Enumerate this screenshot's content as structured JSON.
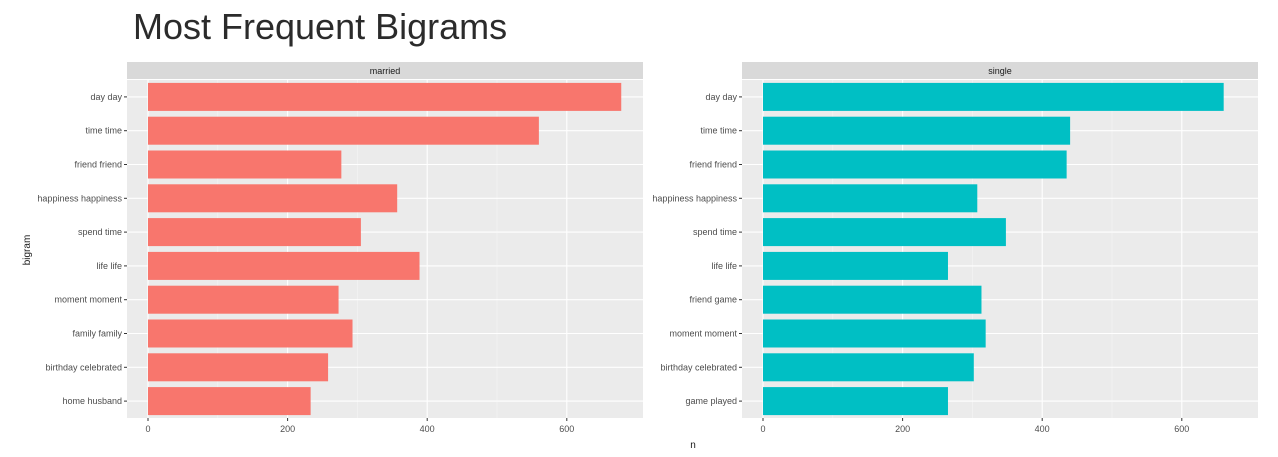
{
  "chart_data": {
    "type": "bar",
    "orientation": "horizontal",
    "title": "Most Frequent Bigrams",
    "xlabel": "n",
    "ylabel": "bigram",
    "xlim": [
      0,
      680
    ],
    "x_ticks": [
      0,
      200,
      400,
      600
    ],
    "grid": true,
    "facets": [
      {
        "name": "married",
        "color": "#F8766D",
        "categories": [
          "day day",
          "time time",
          "friend friend",
          "happiness happiness",
          "spend time",
          "life life",
          "moment moment",
          "family family",
          "birthday celebrated",
          "home husband"
        ],
        "values": [
          678,
          560,
          277,
          357,
          305,
          389,
          273,
          293,
          258,
          233
        ]
      },
      {
        "name": "single",
        "color": "#00BFC4",
        "categories": [
          "day day",
          "time time",
          "friend friend",
          "happiness happiness",
          "spend time",
          "life life",
          "friend game",
          "moment moment",
          "birthday celebrated",
          "game played"
        ],
        "values": [
          660,
          440,
          435,
          307,
          348,
          265,
          313,
          319,
          302,
          265
        ]
      }
    ]
  }
}
